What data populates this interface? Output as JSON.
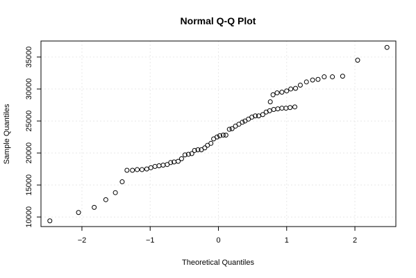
{
  "chart_data": {
    "type": "scatter",
    "title": "Normal Q-Q Plot",
    "xlabel": "Theoretical Quantiles",
    "ylabel": "Sample Quantiles",
    "xlim": [
      -2.6,
      2.6
    ],
    "ylim": [
      8500,
      37500
    ],
    "xticks": [
      -2,
      -1,
      0,
      1,
      2
    ],
    "xtick_labels": [
      "−2",
      "−1",
      "0",
      "1",
      "2"
    ],
    "yticks": [
      10000,
      15000,
      20000,
      25000,
      30000,
      35000
    ],
    "ytick_labels": [
      "10000",
      "15000",
      "20000",
      "25000",
      "30000",
      "35000"
    ],
    "grid": true,
    "series": [
      {
        "marker": "open-circle",
        "color": "#000000",
        "points": [
          [
            -2.47,
            9400
          ],
          [
            -2.05,
            10700
          ],
          [
            -1.82,
            11500
          ],
          [
            -1.65,
            12700
          ],
          [
            -1.51,
            13800
          ],
          [
            -1.41,
            15500
          ],
          [
            -1.34,
            17300
          ],
          [
            -1.26,
            17300
          ],
          [
            -1.19,
            17400
          ],
          [
            -1.12,
            17400
          ],
          [
            -1.05,
            17500
          ],
          [
            -0.99,
            17700
          ],
          [
            -0.93,
            17900
          ],
          [
            -0.87,
            18000
          ],
          [
            -0.81,
            18100
          ],
          [
            -0.75,
            18200
          ],
          [
            -0.7,
            18500
          ],
          [
            -0.65,
            18600
          ],
          [
            -0.59,
            18700
          ],
          [
            -0.54,
            19100
          ],
          [
            -0.49,
            19700
          ],
          [
            -0.44,
            19800
          ],
          [
            -0.39,
            19900
          ],
          [
            -0.35,
            20400
          ],
          [
            -0.3,
            20500
          ],
          [
            -0.25,
            20500
          ],
          [
            -0.2,
            20800
          ],
          [
            -0.16,
            21200
          ],
          [
            -0.11,
            21500
          ],
          [
            -0.07,
            22200
          ],
          [
            -0.02,
            22500
          ],
          [
            0.02,
            22700
          ],
          [
            0.07,
            22800
          ],
          [
            0.11,
            22800
          ],
          [
            0.16,
            23700
          ],
          [
            0.2,
            23800
          ],
          [
            0.25,
            24200
          ],
          [
            0.3,
            24500
          ],
          [
            0.35,
            24800
          ],
          [
            0.39,
            25000
          ],
          [
            0.44,
            25300
          ],
          [
            0.49,
            25600
          ],
          [
            0.54,
            25800
          ],
          [
            0.59,
            25800
          ],
          [
            0.65,
            26000
          ],
          [
            0.7,
            26400
          ],
          [
            0.75,
            26600
          ],
          [
            0.81,
            26800
          ],
          [
            0.87,
            26900
          ],
          [
            0.93,
            27000
          ],
          [
            0.99,
            27000
          ],
          [
            1.05,
            27100
          ],
          [
            1.12,
            27200
          ],
          [
            0.76,
            28000
          ],
          [
            0.8,
            29100
          ],
          [
            0.86,
            29400
          ],
          [
            0.93,
            29500
          ],
          [
            1.0,
            29700
          ],
          [
            1.06,
            30000
          ],
          [
            1.13,
            30100
          ],
          [
            1.2,
            30600
          ],
          [
            1.29,
            31100
          ],
          [
            1.38,
            31400
          ],
          [
            1.46,
            31500
          ],
          [
            1.55,
            31900
          ],
          [
            1.67,
            31900
          ],
          [
            1.82,
            32000
          ],
          [
            2.04,
            34500
          ],
          [
            2.47,
            36500
          ]
        ]
      }
    ]
  }
}
